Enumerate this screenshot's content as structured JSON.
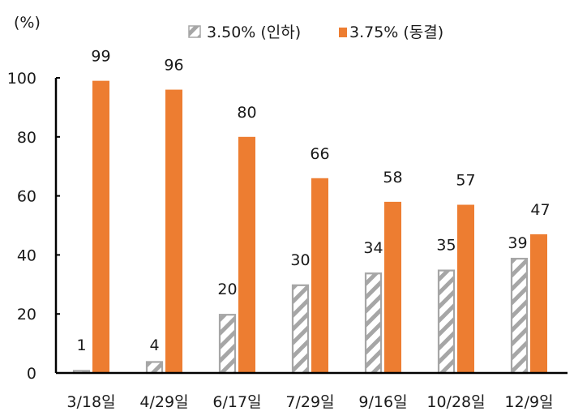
{
  "chart_data": {
    "type": "bar",
    "title": "",
    "ylabel": "(%)",
    "xlabel": "",
    "ylim": [
      0,
      100
    ],
    "yticks": [
      0,
      20,
      40,
      60,
      80,
      100
    ],
    "grid": false,
    "legend_position": "top",
    "categories": [
      "3/18일",
      "4/29일",
      "6/17일",
      "7/29일",
      "9/16일",
      "10/28일",
      "12/9일"
    ],
    "series": [
      {
        "name": "3.50% (인하)",
        "pattern": "hatched",
        "color": "#a6a6a6",
        "values": [
          1,
          4,
          20,
          30,
          34,
          35,
          39
        ]
      },
      {
        "name": "3.75% (동결)",
        "pattern": "solid",
        "color": "#ed7d31",
        "values": [
          99,
          96,
          80,
          66,
          58,
          57,
          47
        ]
      }
    ],
    "data_labels": true
  },
  "axis": {
    "unit_label": "(%)"
  },
  "colors": {
    "hatch": "#a6a6a6",
    "orange": "#ed7d31",
    "axis": "#000000"
  }
}
